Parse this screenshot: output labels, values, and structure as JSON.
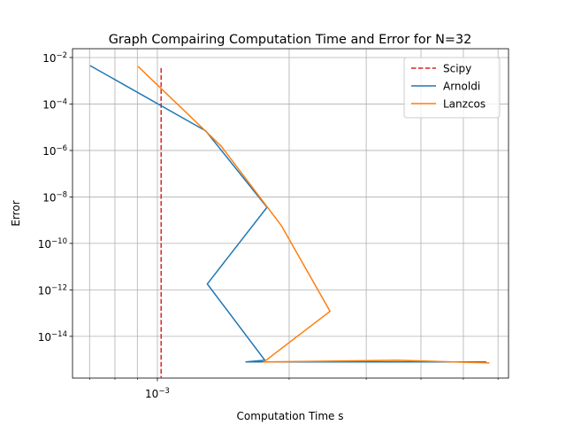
{
  "chart_data": {
    "type": "line",
    "title": "Graph Compairing Computation Time and Error for N=32",
    "xlabel": "Computation Time s",
    "ylabel": "Error",
    "xscale": "log",
    "yscale": "log",
    "grid": true,
    "legend": "upper right",
    "xlim": [
      0.00064,
      0.00634
    ],
    "ylim": [
      1.6e-16,
      0.024
    ],
    "xticks": [
      {
        "value": 0.001,
        "label": "10−3"
      }
    ],
    "xminorticks": [
      0.0007,
      0.0008,
      0.0009,
      0.002,
      0.003,
      0.004,
      0.005,
      0.006
    ],
    "yticks": [
      {
        "value": 0.01,
        "label": "10−2"
      },
      {
        "value": 0.0001,
        "label": "10−4"
      },
      {
        "value": 1e-06,
        "label": "10−6"
      },
      {
        "value": 1e-08,
        "label": "10−8"
      },
      {
        "value": 1e-10,
        "label": "10−10"
      },
      {
        "value": 1e-12,
        "label": "10−12"
      },
      {
        "value": 1e-14,
        "label": "10−14"
      }
    ],
    "series": [
      {
        "name": "Scipy",
        "color": "#d62728",
        "dash": true,
        "x": [
          0.00102,
          0.00102
        ],
        "values": [
          0.0035,
          1.6e-16
        ]
      },
      {
        "name": "Arnoldi",
        "color": "#1f77b4",
        "x": [
          0.000702,
          0.00129,
          0.00178,
          0.0013,
          0.00176,
          0.00159,
          0.00564
        ],
        "values": [
          0.0045,
          6.9e-06,
          3.6e-09,
          1.8e-12,
          9.3e-16,
          7.9e-16,
          7.9e-16
        ]
      },
      {
        "name": "Lanzcos",
        "color": "#ff7f0e",
        "x": [
          0.000903,
          0.0013,
          0.0014,
          0.00192,
          0.00248,
          0.00175,
          0.00354,
          0.00573
        ],
        "values": [
          0.0042,
          5.8e-06,
          1.5e-06,
          5.8e-10,
          1.2e-13,
          7.9e-16,
          9.3e-16,
          7.2e-16
        ]
      }
    ]
  }
}
